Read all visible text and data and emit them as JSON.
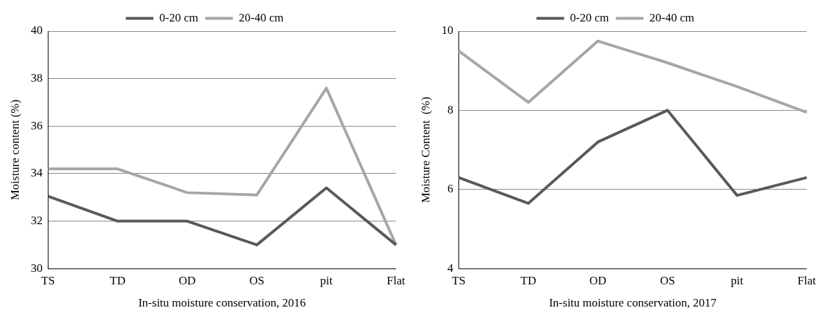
{
  "chart_data": [
    {
      "type": "line",
      "xlabel": "In-situ moisture conservation, 2016",
      "ylabel": "Moisture content (%)",
      "categories": [
        "TS",
        "TD",
        "OD",
        "OS",
        "pit",
        "Flat"
      ],
      "series": [
        {
          "name": "0-20 cm",
          "color": "#595959",
          "values": [
            33.05,
            32,
            32,
            31,
            33.4,
            31
          ]
        },
        {
          "name": "20-40 cm",
          "color": "#a6a6a6",
          "values": [
            34.2,
            34.2,
            33.2,
            33.1,
            37.6,
            31
          ]
        }
      ],
      "ylim": [
        30,
        40
      ],
      "yticks": [
        30,
        32,
        34,
        36,
        38,
        40
      ],
      "grid": "y",
      "legend": "top",
      "marker": "none"
    },
    {
      "type": "line",
      "xlabel": "In-situ moisture conservation, 2017",
      "ylabel": "Moisture Content  (%)",
      "categories": [
        "TS",
        "TD",
        "OD",
        "OS",
        "pit",
        "Flat"
      ],
      "series": [
        {
          "name": "0-20 cm",
          "color": "#595959",
          "values": [
            6.3,
            5.65,
            7.2,
            8.0,
            5.85,
            6.3
          ]
        },
        {
          "name": "20-40 cm",
          "color": "#a6a6a6",
          "values": [
            9.5,
            8.2,
            9.75,
            9.2,
            8.6,
            7.95
          ]
        }
      ],
      "ylim": [
        4,
        10
      ],
      "yticks": [
        4,
        6,
        8,
        10
      ],
      "grid": "y",
      "legend": "top",
      "marker": "none"
    }
  ]
}
